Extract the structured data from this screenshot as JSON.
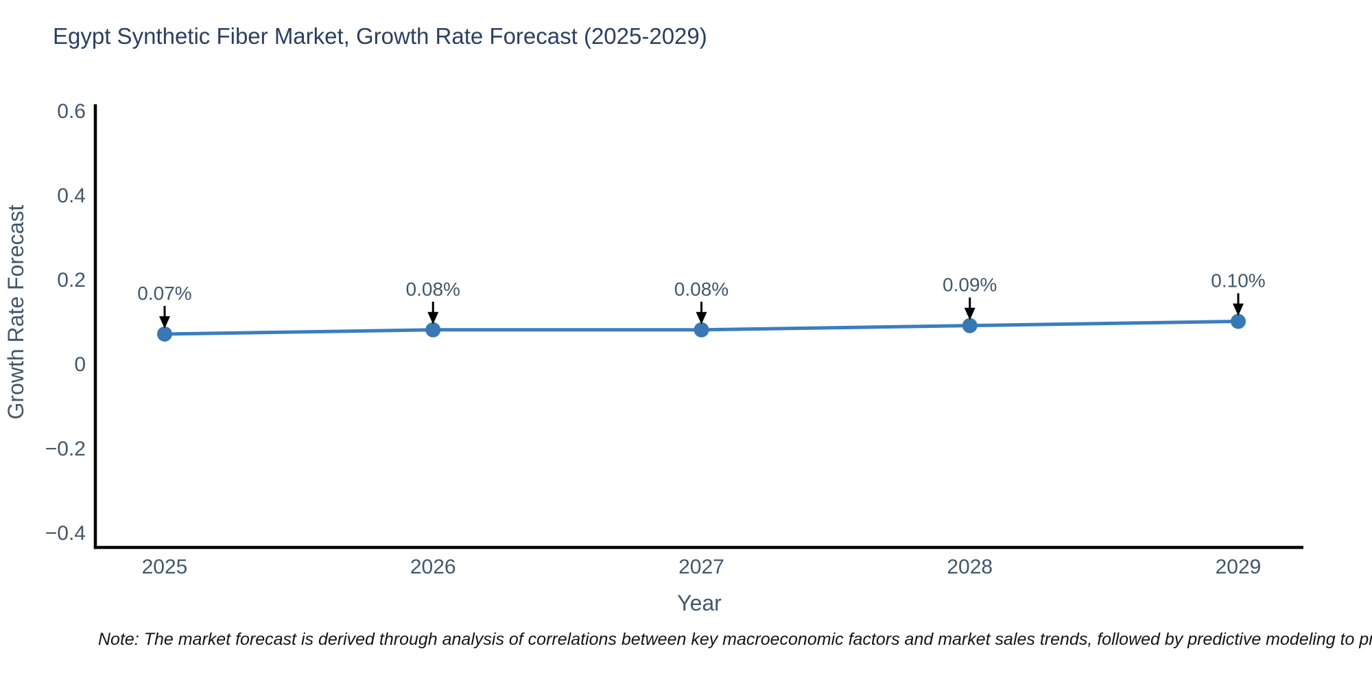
{
  "chart_data": {
    "type": "line",
    "title": "Egypt Synthetic Fiber Market, Growth Rate Forecast (2025-2029)",
    "xlabel": "Year",
    "ylabel": "Growth Rate Forecast",
    "categories": [
      "2025",
      "2026",
      "2027",
      "2028",
      "2029"
    ],
    "series": [
      {
        "name": "Growth Rate Forecast",
        "values": [
          0.07,
          0.08,
          0.08,
          0.09,
          0.1
        ],
        "point_labels": [
          "0.07%",
          "0.08%",
          "0.08%",
          "0.09%",
          "0.10%"
        ]
      }
    ],
    "yticks": [
      {
        "v": 0.6,
        "label": "0.6"
      },
      {
        "v": 0.4,
        "label": "0.4"
      },
      {
        "v": 0.2,
        "label": "0.2"
      },
      {
        "v": 0,
        "label": "0"
      },
      {
        "v": -0.2,
        "label": "−0.2"
      },
      {
        "v": -0.4,
        "label": "−0.4"
      }
    ],
    "ylim": [
      -0.44,
      0.6
    ],
    "grid": false,
    "legend_position": "none",
    "colors": {
      "line": "#3a7ebf",
      "marker": "#3878b4",
      "axis": "#000000",
      "arrow": "#000000",
      "title_text": "#2a3f5f",
      "axis_text": "#42576b"
    },
    "note": "Note: The market forecast is derived through analysis of correlations between key macroeconomic factors and market sales trends, followed by predictive modeling to project future sa"
  }
}
